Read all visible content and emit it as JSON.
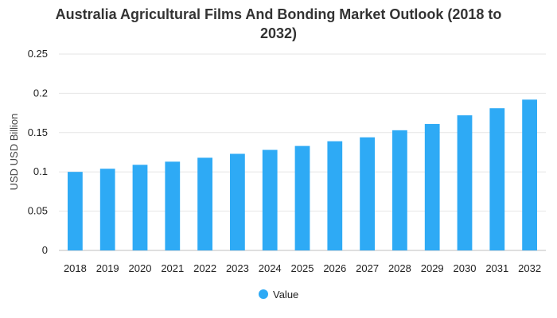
{
  "chart_data": {
    "type": "bar",
    "title_line1": "Australia Agricultural Films And Bonding Market Outlook (2018 to",
    "title_line2": "2032)",
    "xlabel": "",
    "ylabel": "USD USD Billion",
    "categories": [
      "2018",
      "2019",
      "2020",
      "2021",
      "2022",
      "2023",
      "2024",
      "2025",
      "2026",
      "2027",
      "2028",
      "2029",
      "2030",
      "2031",
      "2032"
    ],
    "series": [
      {
        "name": "Value",
        "color": "#2eaaf5",
        "values": [
          0.1,
          0.104,
          0.109,
          0.113,
          0.118,
          0.123,
          0.128,
          0.133,
          0.139,
          0.144,
          0.153,
          0.161,
          0.172,
          0.181,
          0.192
        ]
      }
    ],
    "ylim": [
      0,
      0.25
    ],
    "yticks": [
      "0",
      "0.05",
      "0.1",
      "0.15",
      "0.2",
      "0.25"
    ],
    "grid": true,
    "legend_position": "bottom"
  }
}
